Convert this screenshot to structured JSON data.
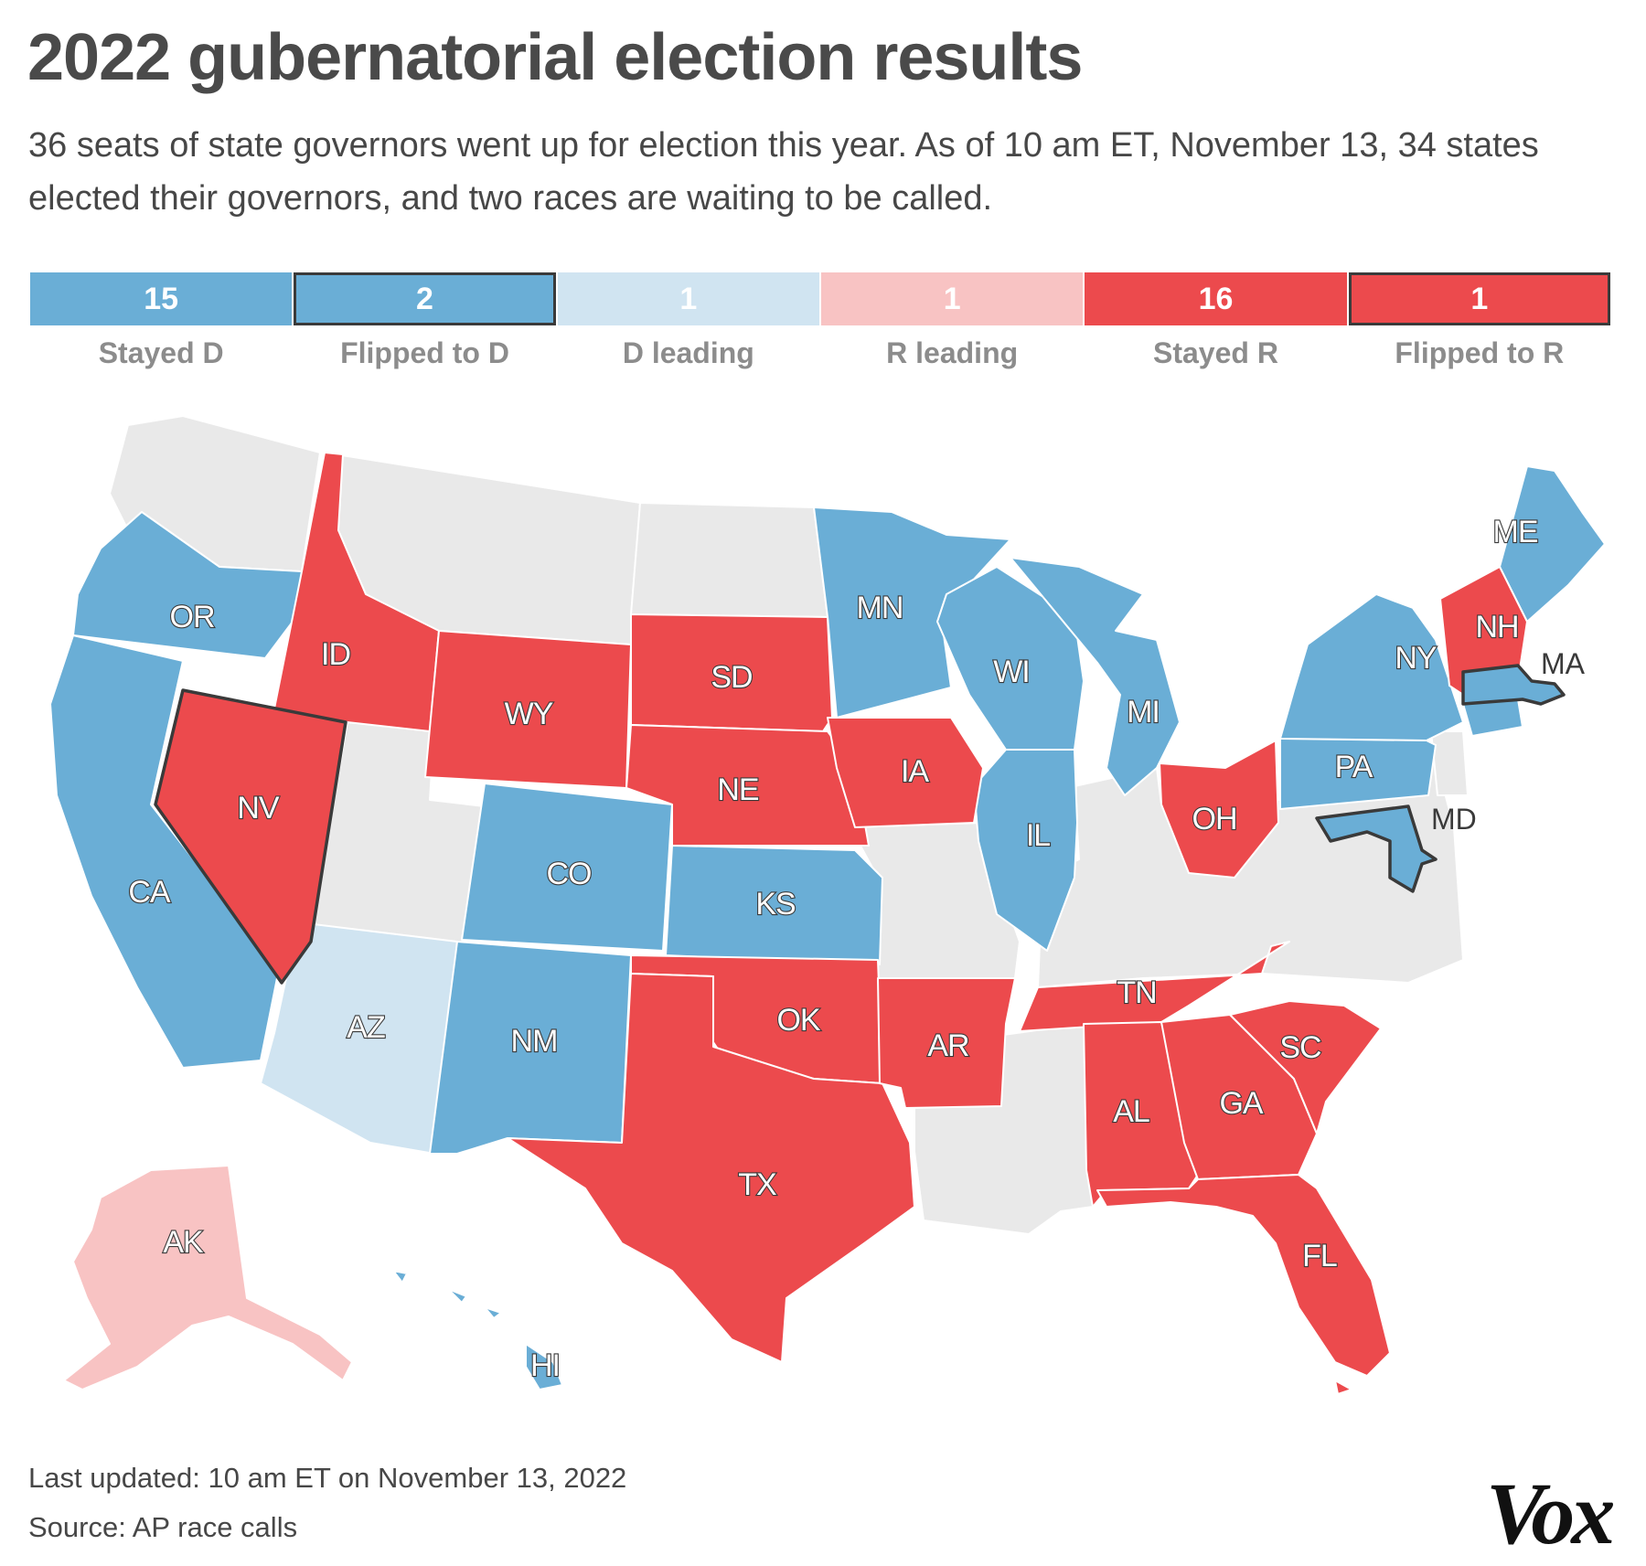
{
  "header": {
    "title": "2022 gubernatorial election results",
    "subtitle": "36 seats of state governors went up for election this year. As of 10 am ET, November 13, 34 states elected their governors, and two races are waiting to be called."
  },
  "legend": {
    "items": [
      {
        "count": "15",
        "label": "Stayed D",
        "color": "#6aaed6"
      },
      {
        "count": "2",
        "label": "Flipped to D",
        "color": "#6aaed6"
      },
      {
        "count": "1",
        "label": "D leading",
        "color": "#d0e4f1"
      },
      {
        "count": "1",
        "label": "R leading",
        "color": "#f8c3c3"
      },
      {
        "count": "16",
        "label": "Stayed R",
        "color": "#ec4a4d"
      },
      {
        "count": "1",
        "label": "Flipped to R",
        "color": "#ec4a4d"
      }
    ]
  },
  "colors": {
    "stayed_d": "#6aaed6",
    "d_leading": "#d0e4f1",
    "r_leading": "#f8c3c3",
    "stayed_r": "#ec4a4d",
    "no_race": "#e9e9e9",
    "border": "#ffffff"
  },
  "map": {
    "states": {
      "OR": {
        "label": "OR",
        "status": "Stayed D"
      },
      "CA": {
        "label": "CA",
        "status": "Stayed D"
      },
      "NV": {
        "label": "NV",
        "status": "Flipped to R"
      },
      "ID": {
        "label": "ID",
        "status": "Stayed R"
      },
      "WY": {
        "label": "WY",
        "status": "Stayed R"
      },
      "SD": {
        "label": "SD",
        "status": "Stayed R"
      },
      "NE": {
        "label": "NE",
        "status": "Stayed R"
      },
      "CO": {
        "label": "CO",
        "status": "Stayed D"
      },
      "KS": {
        "label": "KS",
        "status": "Stayed D"
      },
      "AZ": {
        "label": "AZ",
        "status": "D leading"
      },
      "NM": {
        "label": "NM",
        "status": "Stayed D"
      },
      "OK": {
        "label": "OK",
        "status": "Stayed R"
      },
      "TX": {
        "label": "TX",
        "status": "Stayed R"
      },
      "MN": {
        "label": "MN",
        "status": "Stayed D"
      },
      "IA": {
        "label": "IA",
        "status": "Stayed R"
      },
      "AR": {
        "label": "AR",
        "status": "Stayed R"
      },
      "WI": {
        "label": "WI",
        "status": "Stayed D"
      },
      "IL": {
        "label": "IL",
        "status": "Stayed D"
      },
      "MI": {
        "label": "MI",
        "status": "Stayed D"
      },
      "OH": {
        "label": "OH",
        "status": "Stayed R"
      },
      "TN": {
        "label": "TN",
        "status": "Stayed R"
      },
      "AL": {
        "label": "AL",
        "status": "Stayed R"
      },
      "GA": {
        "label": "GA",
        "status": "Stayed R"
      },
      "SC": {
        "label": "SC",
        "status": "Stayed R"
      },
      "FL": {
        "label": "FL",
        "status": "Stayed R"
      },
      "PA": {
        "label": "PA",
        "status": "Stayed D"
      },
      "NY": {
        "label": "NY",
        "status": "Stayed D"
      },
      "NH": {
        "label": "NH",
        "status": "Stayed R"
      },
      "ME": {
        "label": "ME",
        "status": "Stayed D"
      },
      "MA": {
        "label": "MA",
        "status": "Flipped to D"
      },
      "MD": {
        "label": "MD",
        "status": "Flipped to D"
      },
      "AK": {
        "label": "AK",
        "status": "R leading"
      },
      "HI": {
        "label": "HI",
        "status": "Stayed D"
      }
    }
  },
  "footer": {
    "updated": "Last updated: 10 am ET on November 13, 2022",
    "source": "Source: AP race calls"
  },
  "brand": {
    "logo": "Vox"
  }
}
